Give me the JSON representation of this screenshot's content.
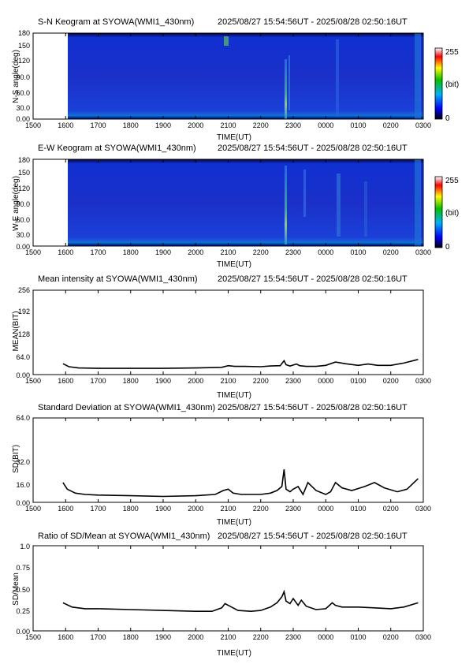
{
  "time_range": "2025/08/27 15:54:56UT - 2025/08/28 02:50:16UT",
  "x_axis": {
    "label": "TIME(UT)",
    "ticks": [
      "1500",
      "1600",
      "1700",
      "1800",
      "1900",
      "2000",
      "2100",
      "2200",
      "2300",
      "0000",
      "0100",
      "0200",
      "0300"
    ]
  },
  "colorbar": {
    "max": "255",
    "unit": "(bit)",
    "min": "0"
  },
  "colors": {
    "keogram_bg": "#1020c8",
    "keogram_edge": "#000050",
    "colorbar_stops": [
      "#000000",
      "#0000ff",
      "#00b0ff",
      "#00c000",
      "#ffff00",
      "#ff0000",
      "#ffffff"
    ]
  },
  "panels": [
    {
      "title": "S-N Keogram at SYOWA(WMI1_430nm)",
      "ylabel": "N-S angle(deg)",
      "yticks": [
        "0.00",
        "30.0",
        "60.0",
        "90.0",
        "120",
        "150",
        "180"
      ]
    },
    {
      "title": "E-W Keogram at SYOWA(WMI1_430nm)",
      "ylabel": "W-E angle(deg)",
      "yticks": [
        "0.00",
        "30.0",
        "60.0",
        "90.0",
        "120",
        "150",
        "180"
      ]
    },
    {
      "title": "Mean intensity at SYOWA(WMI1_430nm)",
      "ylabel": "MEAN(BIT)",
      "yticks": [
        "0.00",
        "64.0",
        "128",
        "192",
        "256"
      ]
    },
    {
      "title": "Standard Deviation at SYOWA(WMI1_430nm)",
      "ylabel": "SD(BIT)",
      "yticks": [
        "0.00",
        "16.0",
        "32.0",
        "64.0"
      ]
    },
    {
      "title": "Ratio of SD/Mean at SYOWA(WMI1_430nm)",
      "ylabel": "SD/Mean",
      "yticks": [
        "0.00",
        "0.25",
        "0.50",
        "0.75",
        "1.0"
      ]
    }
  ],
  "chart_data": [
    {
      "type": "heatmap",
      "title": "S-N Keogram at SYOWA(WMI1_430nm)",
      "xlabel": "TIME(UT)",
      "ylabel": "N-S angle(deg)",
      "xlim": [
        15,
        27
      ],
      "ylim": [
        0,
        180
      ],
      "data_start": 15.92,
      "data_end": 26.84,
      "color_range": [
        0,
        255
      ],
      "features": [
        {
          "time": 22.75,
          "note": "bright aurora arc"
        },
        {
          "time": 24.2
        },
        {
          "time": 21.0
        }
      ]
    },
    {
      "type": "heatmap",
      "title": "E-W Keogram at SYOWA(WMI1_430nm)",
      "xlabel": "TIME(UT)",
      "ylabel": "W-E angle(deg)",
      "xlim": [
        15,
        27
      ],
      "ylim": [
        0,
        180
      ],
      "data_start": 15.92,
      "data_end": 26.84,
      "color_range": [
        0,
        255
      ],
      "features": [
        {
          "time": 22.75
        },
        {
          "time": 24.25
        },
        {
          "time": 23.0
        }
      ]
    },
    {
      "type": "line",
      "title": "Mean intensity at SYOWA(WMI1_430nm)",
      "xlabel": "TIME(UT)",
      "ylabel": "MEAN(BIT)",
      "xlim": [
        15,
        27
      ],
      "ylim": [
        0,
        256
      ],
      "x": [
        15.92,
        16.1,
        16.4,
        17.0,
        18.0,
        19.0,
        20.0,
        20.8,
        21.0,
        21.2,
        21.5,
        22.0,
        22.3,
        22.6,
        22.72,
        22.78,
        22.9,
        23.1,
        23.2,
        23.4,
        23.7,
        24.0,
        24.3,
        24.6,
        25.0,
        25.3,
        25.6,
        26.0,
        26.4,
        26.84
      ],
      "y": [
        33,
        24,
        20,
        19,
        19,
        19,
        20,
        22,
        27,
        25,
        25,
        24,
        26,
        27,
        42,
        30,
        26,
        32,
        27,
        25,
        25,
        28,
        38,
        33,
        28,
        32,
        28,
        28,
        35,
        46
      ]
    },
    {
      "type": "line",
      "title": "Standard Deviation at SYOWA(WMI1_430nm)",
      "xlabel": "TIME(UT)",
      "ylabel": "SD(BIT)",
      "xlim": [
        15,
        27
      ],
      "ylim": [
        0,
        64
      ],
      "x": [
        15.92,
        16.05,
        16.3,
        16.6,
        17.0,
        18.0,
        19.0,
        20.0,
        20.6,
        20.85,
        21.0,
        21.15,
        21.4,
        21.7,
        22.0,
        22.3,
        22.5,
        22.65,
        22.72,
        22.78,
        22.9,
        23.0,
        23.15,
        23.3,
        23.45,
        23.7,
        24.0,
        24.15,
        24.3,
        24.5,
        24.8,
        25.2,
        25.5,
        25.8,
        26.2,
        26.5,
        26.84
      ],
      "y": [
        15,
        10,
        7,
        6,
        5.5,
        5,
        4.5,
        5,
        6,
        9,
        10,
        7,
        6,
        6,
        6,
        7,
        9,
        12,
        25,
        10,
        8,
        10,
        12,
        6,
        15,
        9,
        6,
        8,
        15,
        11,
        9,
        12,
        15,
        11,
        8,
        10,
        18
      ]
    },
    {
      "type": "line",
      "title": "Ratio of SD/Mean at SYOWA(WMI1_430nm)",
      "xlabel": "TIME(UT)",
      "ylabel": "SD/Mean",
      "xlim": [
        15,
        27
      ],
      "ylim": [
        0,
        1
      ],
      "x": [
        15.92,
        16.2,
        16.6,
        17.0,
        18.0,
        19.0,
        20.0,
        20.5,
        20.8,
        20.9,
        21.0,
        21.3,
        21.7,
        22.0,
        22.3,
        22.5,
        22.65,
        22.72,
        22.78,
        22.9,
        23.0,
        23.15,
        23.25,
        23.4,
        23.7,
        24.0,
        24.2,
        24.3,
        24.5,
        25.0,
        25.5,
        26.0,
        26.4,
        26.84
      ],
      "y": [
        0.33,
        0.28,
        0.26,
        0.26,
        0.25,
        0.24,
        0.23,
        0.23,
        0.27,
        0.32,
        0.3,
        0.24,
        0.23,
        0.24,
        0.28,
        0.33,
        0.4,
        0.46,
        0.35,
        0.32,
        0.38,
        0.3,
        0.36,
        0.29,
        0.25,
        0.26,
        0.33,
        0.3,
        0.28,
        0.28,
        0.27,
        0.26,
        0.28,
        0.33
      ]
    }
  ]
}
